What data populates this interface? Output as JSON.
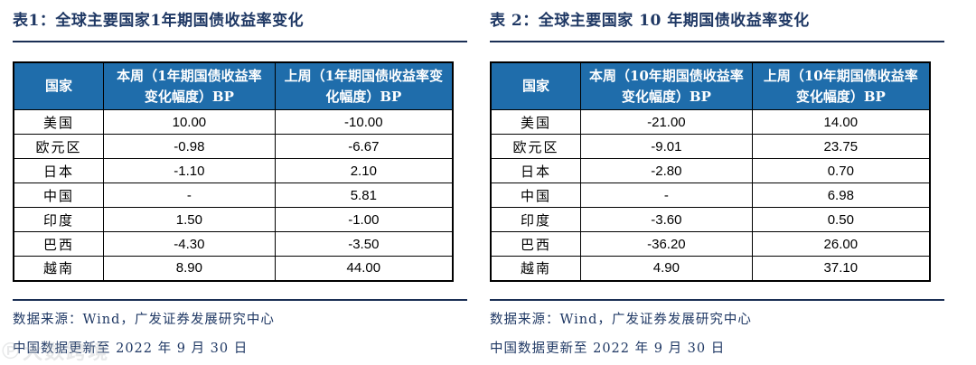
{
  "colors": {
    "header_bg": "#1F6DAB",
    "header_text": "#FFFFFF",
    "title_text": "#1F3864",
    "rule": "#1B2F55",
    "table_border": "#000000",
    "body_text": "#000000",
    "source_text": "#1F3864",
    "watermark": "#AEB2B6"
  },
  "tables": [
    {
      "title": "表1：全球主要国家1年期国债收益率变化",
      "columns": {
        "country": "国家",
        "this_week": "本周（1年期国债收益率变化幅度）BP",
        "last_week": "上周（1年期国债收益率变化幅度）BP"
      },
      "rows": [
        [
          "美国",
          "10.00",
          "-10.00"
        ],
        [
          "欧元区",
          "-0.98",
          "-6.67"
        ],
        [
          "日本",
          "-1.10",
          "2.10"
        ],
        [
          "中国",
          "-",
          "5.81"
        ],
        [
          "印度",
          "1.50",
          "-1.00"
        ],
        [
          "巴西",
          "-4.30",
          "-3.50"
        ],
        [
          "越南",
          "8.90",
          "44.00"
        ]
      ],
      "source": "数据来源：Wind，广发证券发展研究中心",
      "note": "中国数据更新至 2022 年 9 月 30 日"
    },
    {
      "title": "表 2：全球主要国家 10 年期国债收益率变化",
      "columns": {
        "country": "国家",
        "this_week": "本周（10年期国债收益率变化幅度）BP",
        "last_week": "上周（10年期国债收益率变化幅度）BP"
      },
      "rows": [
        [
          "美国",
          "-21.00",
          "14.00"
        ],
        [
          "欧元区",
          "-9.01",
          "23.75"
        ],
        [
          "日本",
          "-2.80",
          "0.70"
        ],
        [
          "中国",
          "-",
          "6.98"
        ],
        [
          "印度",
          "-3.60",
          "0.50"
        ],
        [
          "巴西",
          "-36.20",
          "26.00"
        ],
        [
          "越南",
          "4.90",
          "37.10"
        ]
      ],
      "source": "数据来源：Wind，广发证券发展研究中心",
      "note": "中国数据更新至 2022 年 9 月 30 日"
    }
  ],
  "watermark": {
    "logo": "℗",
    "text": "大数跨境"
  }
}
